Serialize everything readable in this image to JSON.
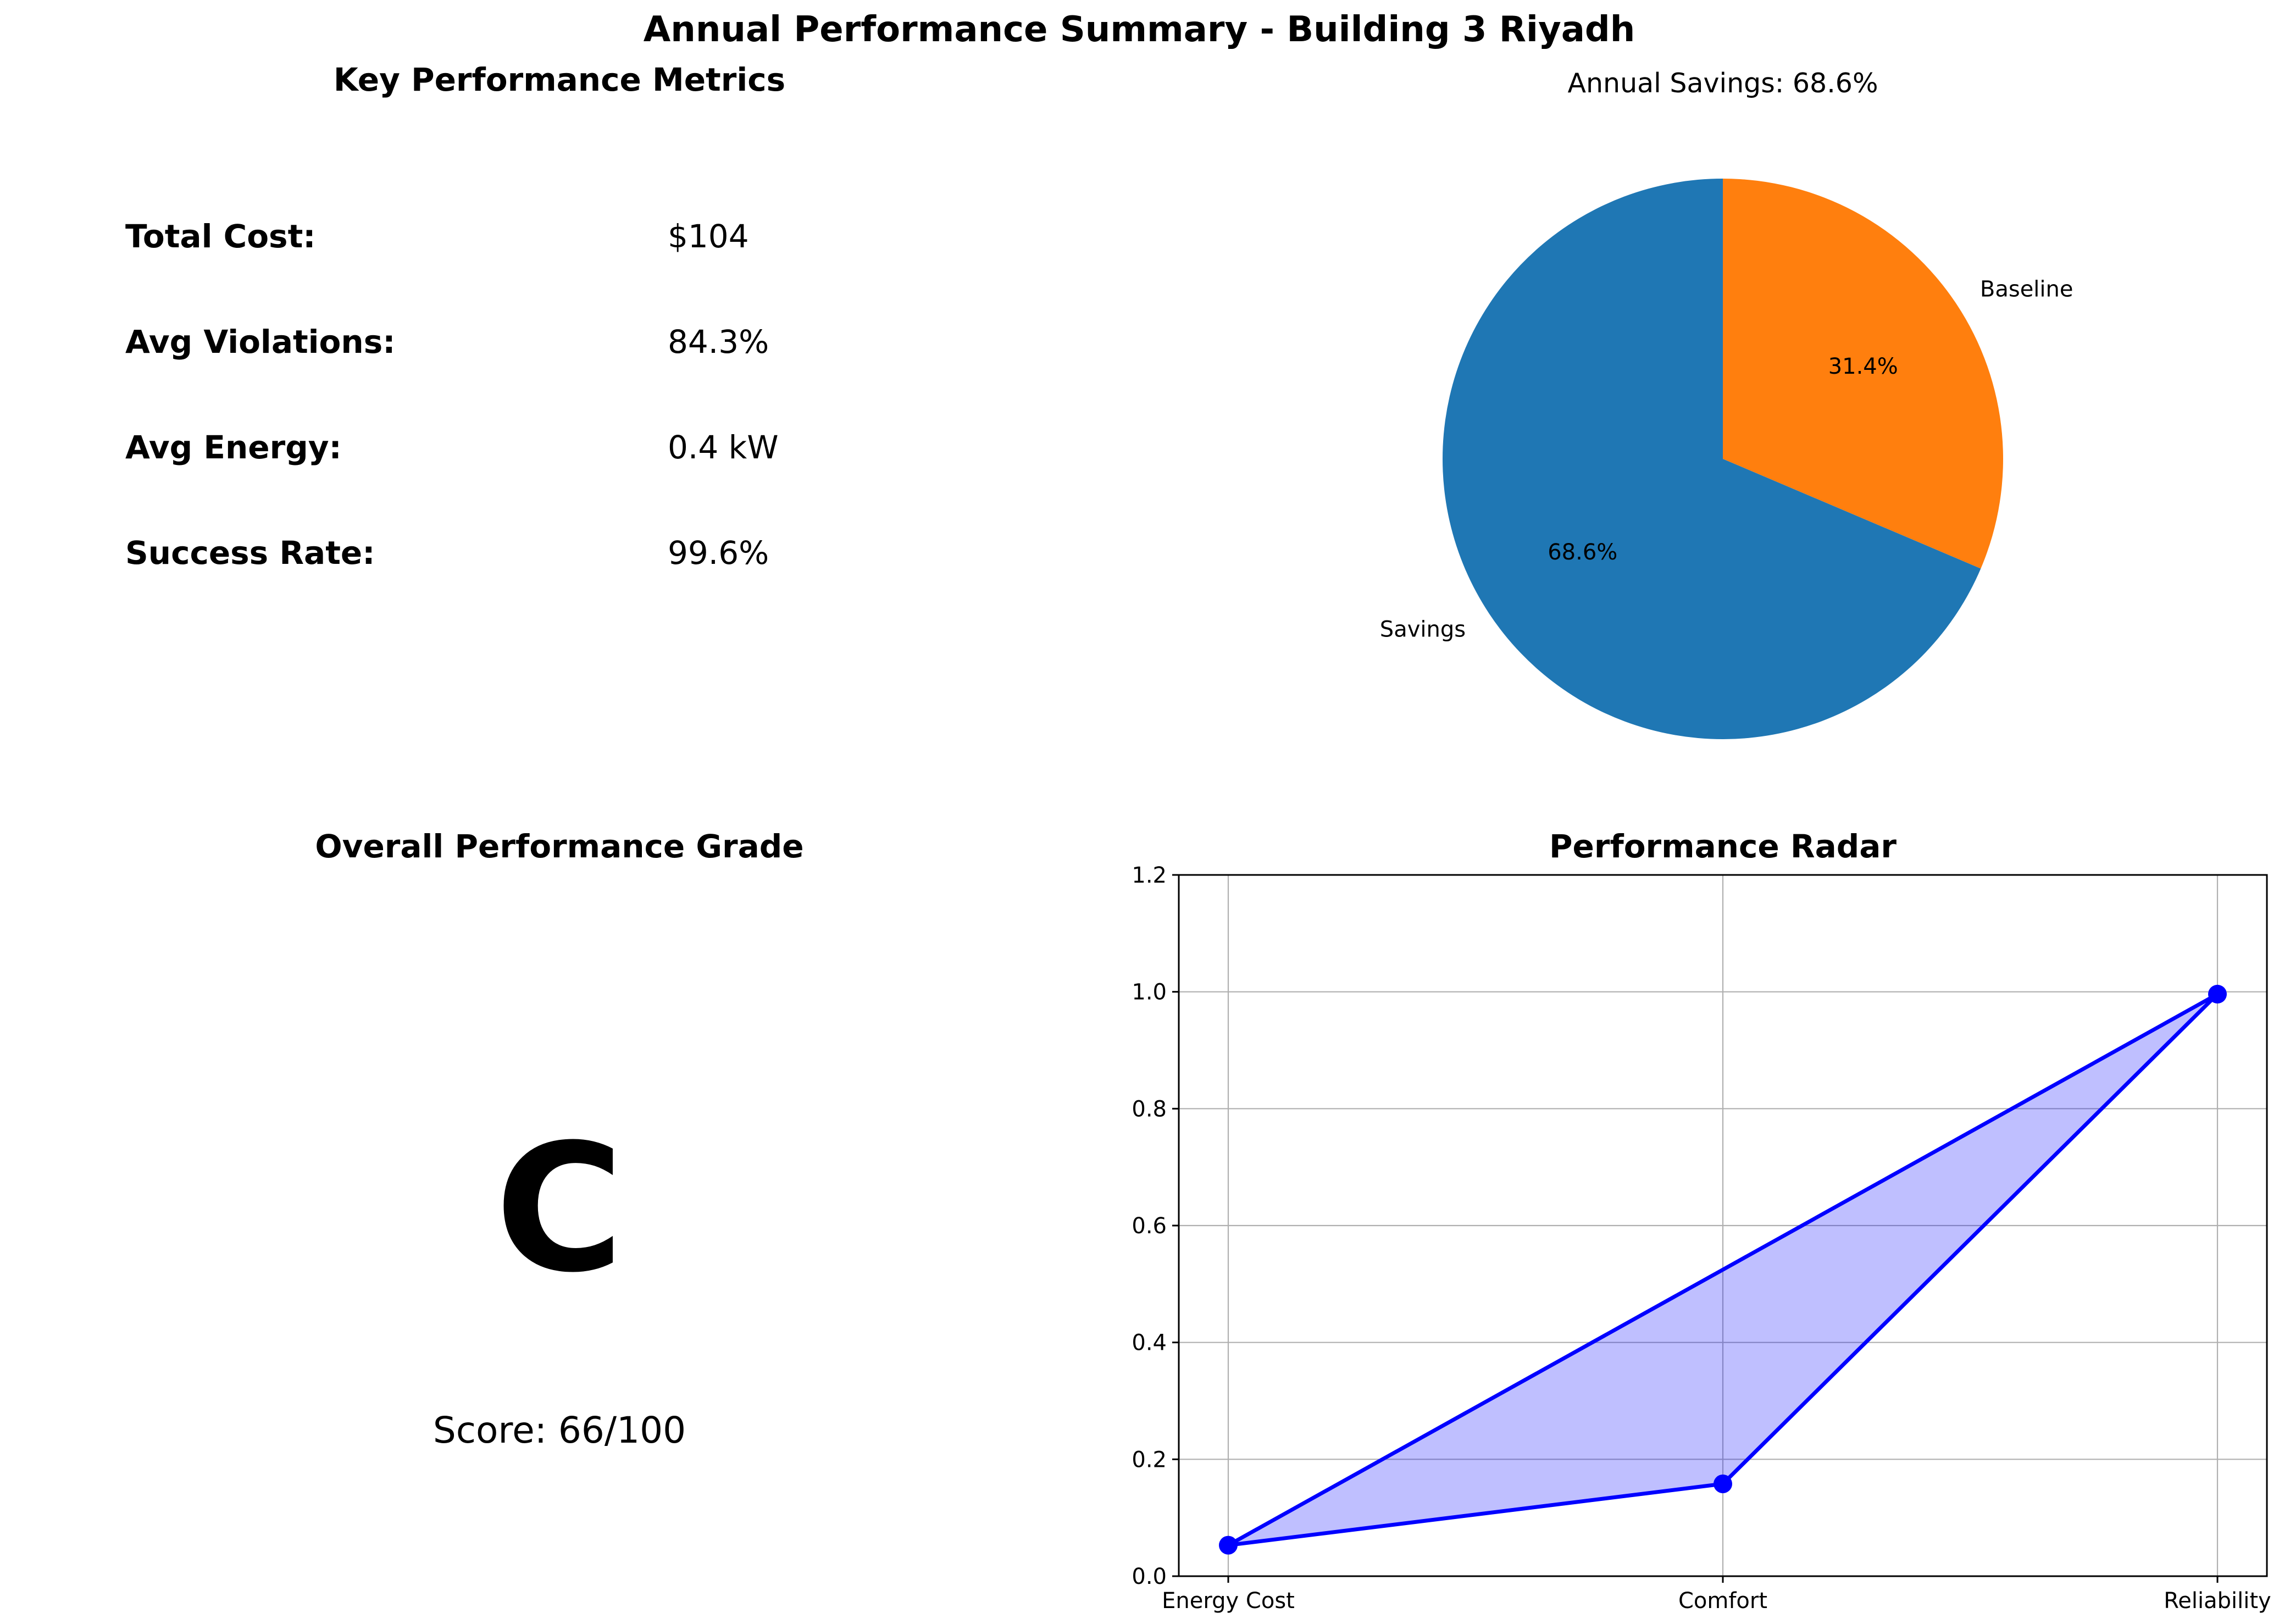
{
  "figure": {
    "title": "Annual Performance Summary - Building 3 Riyadh"
  },
  "metrics_panel": {
    "title": "Key Performance Metrics",
    "label_color": "#000000",
    "value_color": "#0000ff",
    "items": [
      {
        "label": "Total Cost:",
        "value": "$104"
      },
      {
        "label": "Avg Violations:",
        "value": "84.3%"
      },
      {
        "label": "Avg Energy:",
        "value": "0.4 kW"
      },
      {
        "label": "Success Rate:",
        "value": "99.6%"
      }
    ]
  },
  "grade_panel": {
    "title": "Overall Performance Grade",
    "grade": "C",
    "grade_color": "#ff0000",
    "score_text": "Score: 66/100"
  },
  "chart_data": [
    {
      "type": "pie",
      "title": "Annual Savings: 68.6%",
      "start_angle_deg": 90,
      "direction": "clockwise",
      "slices": [
        {
          "label": "Baseline",
          "value": 31.4,
          "pct_label": "31.4%",
          "color": "#ff7f0e"
        },
        {
          "label": "Savings",
          "value": 68.6,
          "pct_label": "68.6%",
          "color": "#1f77b4"
        }
      ]
    },
    {
      "type": "area",
      "title": "Performance Radar",
      "categories": [
        "Energy Cost",
        "Comfort",
        "Reliability"
      ],
      "x": [
        0,
        1,
        2
      ],
      "values": [
        0.053,
        0.158,
        0.996
      ],
      "closed": true,
      "line_color": "#0000ff",
      "fill_color": "#0000ff",
      "fill_opacity": 0.25,
      "ylim": [
        0.0,
        1.2
      ],
      "xlim": [
        -0.1,
        2.1
      ],
      "yticks": [
        0.0,
        0.2,
        0.4,
        0.6,
        0.8,
        1.0,
        1.2
      ],
      "ytick_labels": [
        "0.0",
        "0.2",
        "0.4",
        "0.6",
        "0.8",
        "1.0",
        "1.2"
      ],
      "grid": true
    }
  ]
}
